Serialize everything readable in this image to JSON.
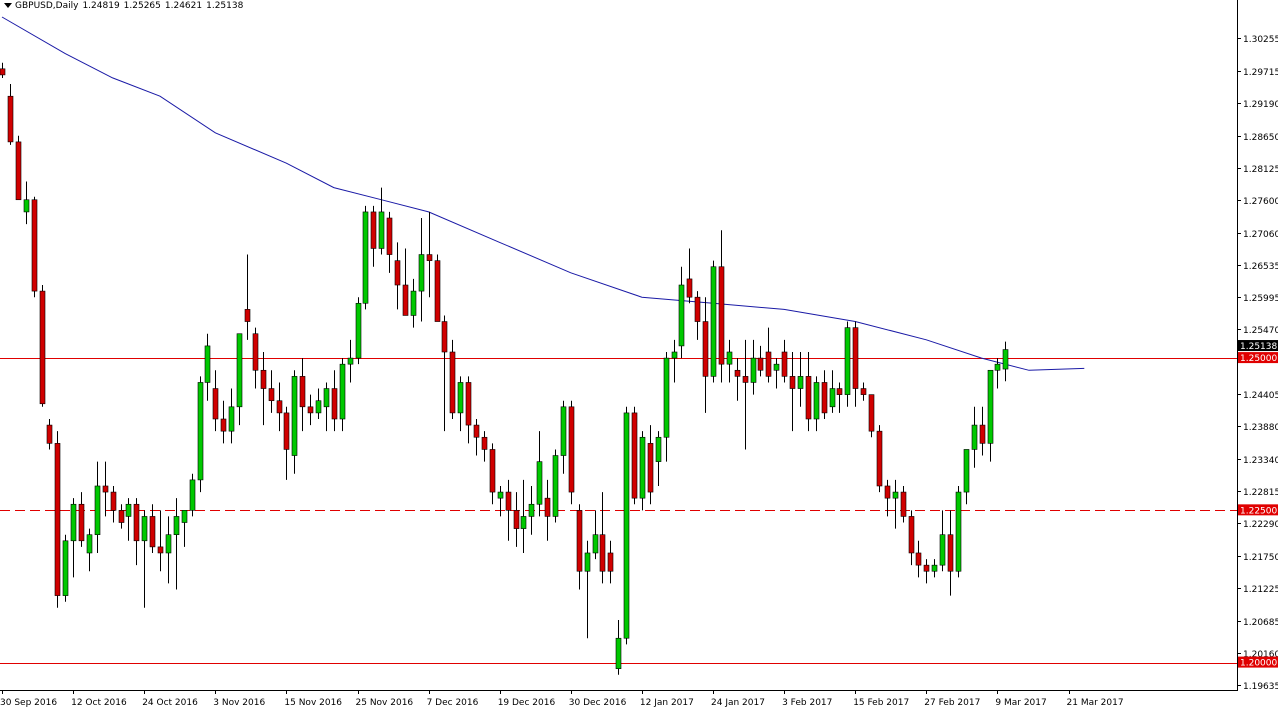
{
  "header": {
    "symbol": "GBPUSD,Daily",
    "open": "1.24819",
    "high": "1.25265",
    "low": "1.24621",
    "close": "1.25138"
  },
  "colors": {
    "background": "#ffffff",
    "bull": "#00c800",
    "bear": "#d00000",
    "wick": "#000000",
    "ma": "#1a1aa6",
    "level_line": "#e00000",
    "axis": "#000000"
  },
  "chart_data": {
    "type": "candlestick",
    "symbol": "GBPUSD",
    "timeframe": "Daily",
    "y_ticks": [
      "1.30255",
      "1.29715",
      "1.29190",
      "1.28650",
      "1.28125",
      "1.27600",
      "1.27060",
      "1.26535",
      "1.25995",
      "1.25470",
      "1.24405",
      "1.23880",
      "1.23340",
      "1.22815",
      "1.22290",
      "1.21750",
      "1.21225",
      "1.20685",
      "1.20160",
      "1.19635"
    ],
    "ylim": [
      1.1955,
      1.3065
    ],
    "x_labels": [
      "30 Sep 2016",
      "12 Oct 2016",
      "24 Oct 2016",
      "3 Nov 2016",
      "15 Nov 2016",
      "25 Nov 2016",
      "7 Dec 2016",
      "19 Dec 2016",
      "30 Dec 2016",
      "12 Jan 2017",
      "24 Jan 2017",
      "3 Feb 2017",
      "15 Feb 2017",
      "27 Feb 2017",
      "9 Mar 2017",
      "21 Mar 2017"
    ],
    "x_label_index": [
      0,
      9,
      18,
      27,
      36,
      45,
      54,
      63,
      72,
      81,
      90,
      99,
      108,
      117,
      126,
      135
    ],
    "levels": [
      {
        "label": "1.25000",
        "value": 1.25,
        "style": "solid"
      },
      {
        "label": "1.22500",
        "value": 1.225,
        "style": "dashed"
      },
      {
        "label": "1.20000",
        "value": 1.2,
        "style": "solid"
      }
    ],
    "current_price": "1.25138",
    "candles": [
      [
        1.2975,
        1.2985,
        1.296,
        1.2965
      ],
      [
        1.293,
        1.295,
        1.285,
        1.2855
      ],
      [
        1.2855,
        1.2865,
        1.276,
        1.276
      ],
      [
        1.274,
        1.279,
        1.272,
        1.276
      ],
      [
        1.276,
        1.2765,
        1.26,
        1.261
      ],
      [
        1.261,
        1.262,
        1.242,
        1.2425
      ],
      [
        1.239,
        1.24,
        1.235,
        1.236
      ],
      [
        1.236,
        1.238,
        1.209,
        1.211
      ],
      [
        1.211,
        1.221,
        1.21,
        1.22
      ],
      [
        1.22,
        1.227,
        1.214,
        1.226
      ],
      [
        1.226,
        1.228,
        1.219,
        1.22
      ],
      [
        1.218,
        1.222,
        1.215,
        1.221
      ],
      [
        1.221,
        1.233,
        1.218,
        1.229
      ],
      [
        1.229,
        1.233,
        1.224,
        1.228
      ],
      [
        1.228,
        1.229,
        1.223,
        1.225
      ],
      [
        1.225,
        1.226,
        1.222,
        1.223
      ],
      [
        1.224,
        1.227,
        1.22,
        1.226
      ],
      [
        1.226,
        1.227,
        1.216,
        1.22
      ],
      [
        1.22,
        1.225,
        1.209,
        1.224
      ],
      [
        1.224,
        1.226,
        1.218,
        1.219
      ],
      [
        1.219,
        1.225,
        1.215,
        1.218
      ],
      [
        1.218,
        1.224,
        1.213,
        1.221
      ],
      [
        1.221,
        1.227,
        1.212,
        1.224
      ],
      [
        1.223,
        1.225,
        1.219,
        1.225
      ],
      [
        1.225,
        1.231,
        1.224,
        1.23
      ],
      [
        1.23,
        1.247,
        1.228,
        1.246
      ],
      [
        1.246,
        1.254,
        1.243,
        1.252
      ],
      [
        1.245,
        1.248,
        1.238,
        1.24
      ],
      [
        1.24,
        1.243,
        1.236,
        1.238
      ],
      [
        1.238,
        1.245,
        1.236,
        1.242
      ],
      [
        1.242,
        1.254,
        1.239,
        1.254
      ],
      [
        1.258,
        1.267,
        1.253,
        1.256
      ],
      [
        1.254,
        1.255,
        1.245,
        1.248
      ],
      [
        1.248,
        1.251,
        1.239,
        1.245
      ],
      [
        1.245,
        1.248,
        1.241,
        1.243
      ],
      [
        1.243,
        1.246,
        1.238,
        1.241
      ],
      [
        1.241,
        1.242,
        1.23,
        1.235
      ],
      [
        1.234,
        1.248,
        1.231,
        1.247
      ],
      [
        1.247,
        1.25,
        1.238,
        1.242
      ],
      [
        1.242,
        1.244,
        1.239,
        1.241
      ],
      [
        1.241,
        1.245,
        1.24,
        1.243
      ],
      [
        1.242,
        1.246,
        1.238,
        1.245
      ],
      [
        1.245,
        1.248,
        1.238,
        1.24
      ],
      [
        1.24,
        1.25,
        1.238,
        1.249
      ],
      [
        1.249,
        1.253,
        1.246,
        1.25
      ],
      [
        1.25,
        1.26,
        1.249,
        1.259
      ],
      [
        1.259,
        1.275,
        1.258,
        1.274
      ],
      [
        1.274,
        1.275,
        1.265,
        1.268
      ],
      [
        1.268,
        1.278,
        1.267,
        1.274
      ],
      [
        1.273,
        1.274,
        1.264,
        1.267
      ],
      [
        1.266,
        1.269,
        1.258,
        1.262
      ],
      [
        1.262,
        1.268,
        1.257,
        1.257
      ],
      [
        1.257,
        1.263,
        1.255,
        1.261
      ],
      [
        1.261,
        1.273,
        1.256,
        1.267
      ],
      [
        1.267,
        1.274,
        1.26,
        1.266
      ],
      [
        1.266,
        1.267,
        1.256,
        1.256
      ],
      [
        1.256,
        1.257,
        1.238,
        1.251
      ],
      [
        1.251,
        1.253,
        1.24,
        1.241
      ],
      [
        1.241,
        1.247,
        1.238,
        1.246
      ],
      [
        1.246,
        1.247,
        1.236,
        1.239
      ],
      [
        1.239,
        1.24,
        1.234,
        1.237
      ],
      [
        1.237,
        1.238,
        1.233,
        1.235
      ],
      [
        1.235,
        1.236,
        1.226,
        1.228
      ],
      [
        1.227,
        1.229,
        1.224,
        1.228
      ],
      [
        1.228,
        1.23,
        1.22,
        1.225
      ],
      [
        1.225,
        1.228,
        1.219,
        1.222
      ],
      [
        1.222,
        1.23,
        1.218,
        1.224
      ],
      [
        1.224,
        1.229,
        1.221,
        1.226
      ],
      [
        1.226,
        1.238,
        1.224,
        1.233
      ],
      [
        1.227,
        1.23,
        1.22,
        1.224
      ],
      [
        1.224,
        1.235,
        1.223,
        1.234
      ],
      [
        1.234,
        1.243,
        1.231,
        1.242
      ],
      [
        1.242,
        1.243,
        1.226,
        1.228
      ],
      [
        1.225,
        1.226,
        1.212,
        1.215
      ],
      [
        1.215,
        1.22,
        1.204,
        1.218
      ],
      [
        1.218,
        1.225,
        1.217,
        1.221
      ],
      [
        1.221,
        1.228,
        1.213,
        1.215
      ],
      [
        1.218,
        1.22,
        1.213,
        1.215
      ],
      [
        1.199,
        1.207,
        1.198,
        1.204
      ],
      [
        1.204,
        1.242,
        1.203,
        1.241
      ],
      [
        1.241,
        1.242,
        1.226,
        1.227
      ],
      [
        1.227,
        1.238,
        1.225,
        1.237
      ],
      [
        1.236,
        1.239,
        1.226,
        1.228
      ],
      [
        1.233,
        1.238,
        1.229,
        1.237
      ],
      [
        1.237,
        1.251,
        1.233,
        1.25
      ],
      [
        1.25,
        1.253,
        1.246,
        1.251
      ],
      [
        1.252,
        1.265,
        1.25,
        1.262
      ],
      [
        1.263,
        1.268,
        1.259,
        1.26
      ],
      [
        1.26,
        1.261,
        1.253,
        1.256
      ],
      [
        1.256,
        1.26,
        1.241,
        1.247
      ],
      [
        1.247,
        1.266,
        1.246,
        1.265
      ],
      [
        1.265,
        1.271,
        1.246,
        1.249
      ],
      [
        1.249,
        1.253,
        1.246,
        1.251
      ],
      [
        1.248,
        1.25,
        1.243,
        1.247
      ],
      [
        1.247,
        1.253,
        1.235,
        1.246
      ],
      [
        1.246,
        1.253,
        1.244,
        1.25
      ],
      [
        1.25,
        1.252,
        1.247,
        1.248
      ],
      [
        1.251,
        1.255,
        1.246,
        1.247
      ],
      [
        1.248,
        1.25,
        1.245,
        1.249
      ],
      [
        1.251,
        1.253,
        1.246,
        1.247
      ],
      [
        1.247,
        1.251,
        1.238,
        1.245
      ],
      [
        1.245,
        1.251,
        1.242,
        1.247
      ],
      [
        1.247,
        1.251,
        1.238,
        1.24
      ],
      [
        1.24,
        1.247,
        1.238,
        1.246
      ],
      [
        1.246,
        1.248,
        1.24,
        1.241
      ],
      [
        1.242,
        1.248,
        1.241,
        1.245
      ],
      [
        1.245,
        1.246,
        1.241,
        1.244
      ],
      [
        1.244,
        1.256,
        1.242,
        1.255
      ],
      [
        1.255,
        1.256,
        1.242,
        1.245
      ],
      [
        1.245,
        1.246,
        1.243,
        1.244
      ],
      [
        1.244,
        1.244,
        1.237,
        1.238
      ],
      [
        1.238,
        1.239,
        1.228,
        1.229
      ],
      [
        1.229,
        1.23,
        1.224,
        1.227
      ],
      [
        1.227,
        1.23,
        1.222,
        1.228
      ],
      [
        1.228,
        1.229,
        1.223,
        1.224
      ],
      [
        1.224,
        1.225,
        1.216,
        1.218
      ],
      [
        1.218,
        1.22,
        1.214,
        1.216
      ],
      [
        1.216,
        1.217,
        1.213,
        1.215
      ],
      [
        1.215,
        1.217,
        1.214,
        1.216
      ],
      [
        1.216,
        1.225,
        1.215,
        1.221
      ],
      [
        1.221,
        1.225,
        1.211,
        1.215
      ],
      [
        1.215,
        1.229,
        1.214,
        1.228
      ],
      [
        1.228,
        1.235,
        1.226,
        1.235
      ],
      [
        1.235,
        1.242,
        1.232,
        1.239
      ],
      [
        1.239,
        1.242,
        1.234,
        1.236
      ],
      [
        1.236,
        1.248,
        1.233,
        1.248
      ],
      [
        1.248,
        1.25,
        1.245,
        1.249
      ],
      [
        1.2482,
        1.2527,
        1.2462,
        1.2514
      ]
    ],
    "moving_average": [
      [
        0,
        1.306
      ],
      [
        8,
        1.3
      ],
      [
        14,
        1.296
      ],
      [
        20,
        1.293
      ],
      [
        27,
        1.287
      ],
      [
        36,
        1.282
      ],
      [
        42,
        1.278
      ],
      [
        48,
        1.276
      ],
      [
        54,
        1.274
      ],
      [
        63,
        1.269
      ],
      [
        72,
        1.264
      ],
      [
        81,
        1.26
      ],
      [
        90,
        1.259
      ],
      [
        99,
        1.258
      ],
      [
        108,
        1.256
      ],
      [
        117,
        1.253
      ],
      [
        124,
        1.25
      ],
      [
        130,
        1.248
      ],
      [
        137,
        1.2483
      ]
    ]
  }
}
